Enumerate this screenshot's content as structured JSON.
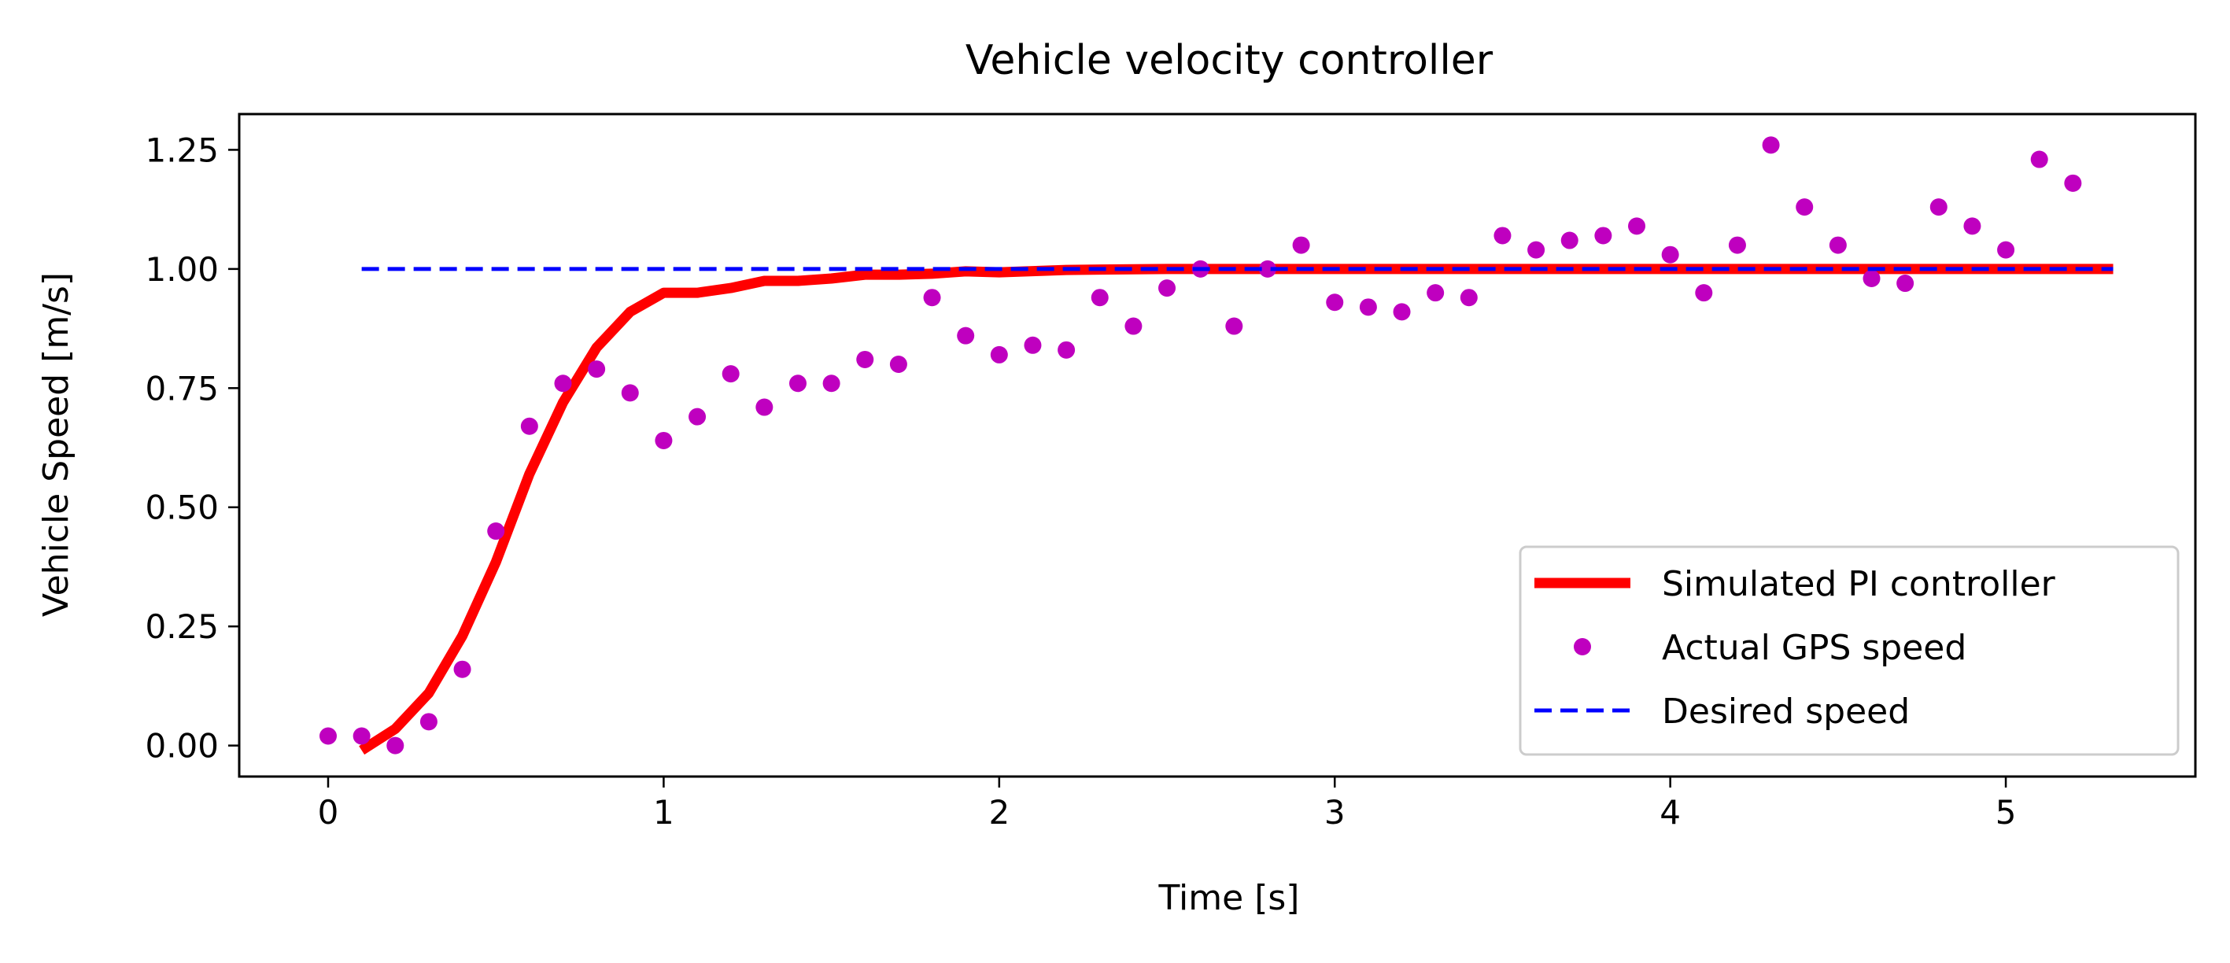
{
  "chart_data": {
    "type": "line",
    "title": "Vehicle velocity controller",
    "xlabel": "Time [s]",
    "ylabel": "Vehicle Speed [m/s]",
    "xlim": [
      -0.265,
      5.565
    ],
    "ylim": [
      -0.065,
      1.325
    ],
    "xticks": [
      0,
      1,
      2,
      3,
      4,
      5
    ],
    "xtick_labels": [
      "0",
      "1",
      "2",
      "3",
      "4",
      "5"
    ],
    "yticks": [
      0,
      0.25,
      0.5,
      0.75,
      1.0,
      1.25
    ],
    "ytick_labels": [
      "0.00",
      "0.25",
      "0.50",
      "0.75",
      "1.00",
      "1.25"
    ],
    "grid": false,
    "legend_position": "lower-right",
    "series": [
      {
        "name": "Simulated PI controller",
        "style": "line",
        "color": "#ff0000",
        "x": [
          0.1,
          0.2,
          0.3,
          0.4,
          0.5,
          0.6,
          0.7,
          0.8,
          0.9,
          1.0,
          1.1,
          1.2,
          1.3,
          1.4,
          1.5,
          1.6,
          1.7,
          1.8,
          1.9,
          2.0,
          2.2,
          2.5,
          3.0,
          3.5,
          4.0,
          4.5,
          5.0,
          5.32
        ],
        "y": [
          -0.01,
          0.035,
          0.11,
          0.23,
          0.385,
          0.57,
          0.72,
          0.835,
          0.91,
          0.95,
          0.95,
          0.96,
          0.975,
          0.975,
          0.98,
          0.988,
          0.988,
          0.99,
          0.995,
          0.993,
          0.998,
          1.0,
          1.0,
          1.0,
          1.0,
          1.0,
          1.0,
          1.0
        ]
      },
      {
        "name": "Actual GPS speed",
        "style": "points",
        "color": "#bf00bf",
        "x": [
          0.0,
          0.1,
          0.2,
          0.3,
          0.4,
          0.5,
          0.6,
          0.7,
          0.8,
          0.9,
          1.0,
          1.1,
          1.2,
          1.3,
          1.4,
          1.5,
          1.6,
          1.7,
          1.8,
          1.9,
          2.0,
          2.1,
          2.2,
          2.3,
          2.4,
          2.5,
          2.6,
          2.7,
          2.8,
          2.9,
          3.0,
          3.1,
          3.2,
          3.3,
          3.4,
          3.5,
          3.6,
          3.7,
          3.8,
          3.9,
          4.0,
          4.1,
          4.2,
          4.3,
          4.4,
          4.5,
          4.6,
          4.7,
          4.8,
          4.9,
          5.0,
          5.1,
          5.2
        ],
        "y": [
          0.02,
          0.02,
          0.0,
          0.05,
          0.16,
          0.45,
          0.67,
          0.76,
          0.79,
          0.74,
          0.64,
          0.69,
          0.78,
          0.71,
          0.76,
          0.76,
          0.81,
          0.8,
          0.94,
          0.86,
          0.82,
          0.84,
          0.83,
          0.94,
          0.88,
          0.96,
          1.0,
          0.88,
          1.0,
          1.05,
          0.93,
          0.92,
          0.91,
          0.95,
          0.94,
          1.07,
          1.04,
          1.06,
          1.07,
          1.09,
          1.03,
          0.95,
          1.05,
          1.26,
          1.13,
          1.05,
          0.98,
          0.97,
          1.13,
          1.09,
          1.04,
          1.23,
          1.18
        ]
      },
      {
        "name": "Desired speed",
        "style": "dashed",
        "color": "#0000ff",
        "x": [
          0.1,
          5.32
        ],
        "y": [
          1.0,
          1.0
        ]
      }
    ]
  }
}
